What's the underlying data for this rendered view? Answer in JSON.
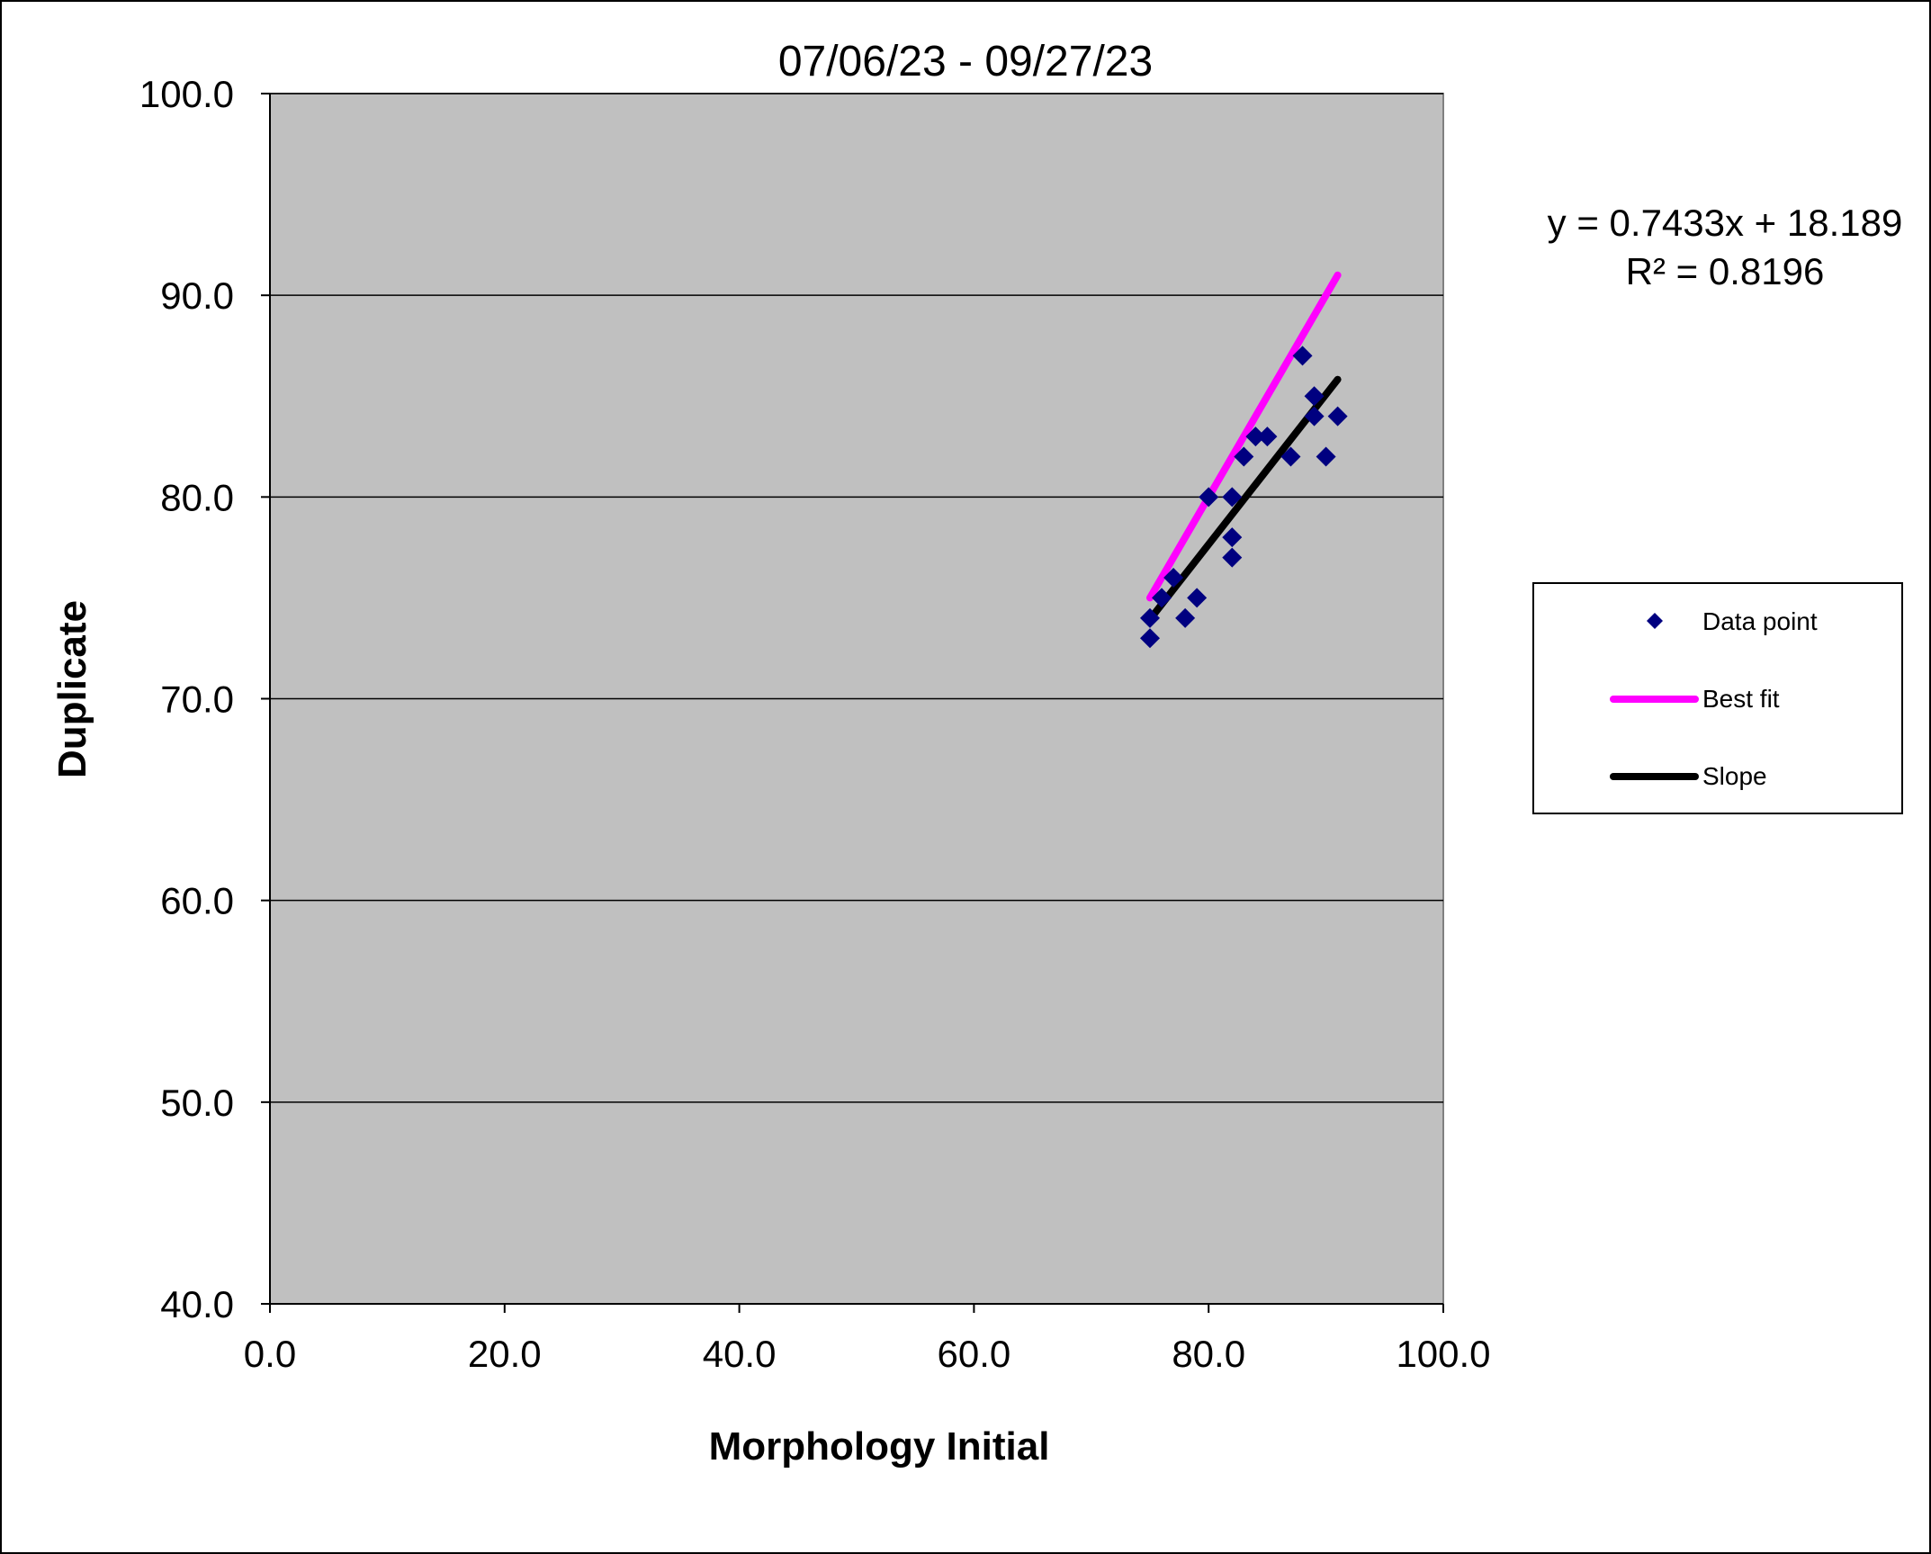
{
  "chart_data": {
    "type": "scatter",
    "title": "07/06/23 - 09/27/23",
    "xlabel": "Morphology Initial",
    "ylabel": "Duplicate",
    "xlim": [
      0,
      100
    ],
    "ylim": [
      40,
      100
    ],
    "x_ticks": [
      "0.0",
      "20.0",
      "40.0",
      "60.0",
      "80.0",
      "100.0"
    ],
    "y_ticks": [
      "40.0",
      "50.0",
      "60.0",
      "70.0",
      "80.0",
      "90.0",
      "100.0"
    ],
    "x_tick_values": [
      0,
      20,
      40,
      60,
      80,
      100
    ],
    "y_tick_values": [
      40,
      50,
      60,
      70,
      80,
      90,
      100
    ],
    "grid": "horizontal",
    "plot_background": "#c0c0c0",
    "equation": "y = 0.7433x + 18.189",
    "r_squared": "R² = 0.8196",
    "legend_position": "right",
    "series": [
      {
        "name": "Data point",
        "type": "scatter",
        "marker": "diamond",
        "color": "#000080",
        "points": [
          [
            75,
            73
          ],
          [
            75,
            74
          ],
          [
            76,
            75
          ],
          [
            77,
            76
          ],
          [
            78,
            74
          ],
          [
            79,
            75
          ],
          [
            80,
            80
          ],
          [
            82,
            80
          ],
          [
            82,
            78
          ],
          [
            82,
            77
          ],
          [
            83,
            82
          ],
          [
            84,
            83
          ],
          [
            85,
            83
          ],
          [
            87,
            82
          ],
          [
            88,
            87
          ],
          [
            89,
            85
          ],
          [
            89,
            84
          ],
          [
            90,
            82
          ],
          [
            91,
            84
          ]
        ]
      },
      {
        "name": "Best fit",
        "type": "line",
        "color": "#ff00ff",
        "points": [
          [
            75,
            75
          ],
          [
            91,
            91
          ]
        ]
      },
      {
        "name": "Slope",
        "type": "line",
        "color": "#000000",
        "points": [
          [
            75,
            73.9365
          ],
          [
            91,
            85.8293
          ]
        ]
      }
    ]
  }
}
